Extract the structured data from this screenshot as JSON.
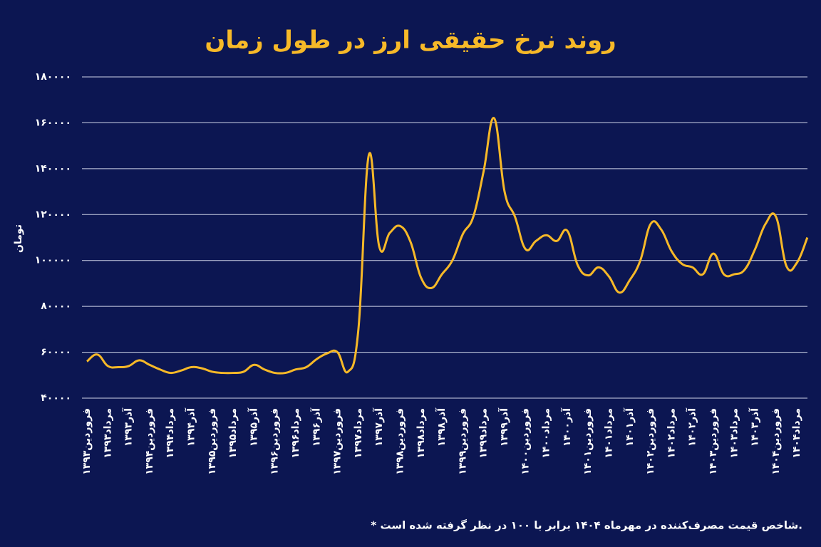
{
  "chart_data": {
    "type": "line",
    "title": "روند نرخ حقیقی ارز در طول زمان",
    "y_label": "تومان",
    "footnote": "* شاخص قیمت مصرف‌کننده در مهرماه ۱۴۰۴ برابر با ۱۰۰ در نظر گرفته شده است.",
    "categories": [
      "فروردین۱۳۹۳",
      null,
      "مرداد۱۳۹۳",
      null,
      "آذر۱۳۹۳",
      null,
      "فروردین۱۳۹۴",
      null,
      "مرداد۱۳۹۴",
      null,
      "آذر۱۳۹۴",
      null,
      "فروردین۱۳۹۵",
      null,
      "مرداد۱۳۹۵",
      null,
      "آذر۱۳۹۵",
      null,
      "فروردین۱۳۹۶",
      null,
      "مرداد۱۳۹۶",
      null,
      "آذر۱۳۹۶",
      null,
      "فروردین۱۳۹۷",
      null,
      "مرداد۱۳۹۷",
      null,
      "آذر۱۳۹۷",
      null,
      "فروردین۱۳۹۸",
      null,
      "مرداد۱۳۹۸",
      null,
      "آذر۱۳۹۸",
      null,
      "فروردین۱۳۹۹",
      null,
      "مرداد۱۳۹۹",
      null,
      "آذر۱۳۹۹",
      null,
      "فروردین۱۴۰۰",
      null,
      "مرداد۱۴۰۰",
      null,
      "آذر۱۴۰۰",
      null,
      "فروردین۱۴۰۱",
      null,
      "مرداد۱۴۰۱",
      null,
      "آذر۱۴۰۱",
      null,
      "فروردین۱۴۰۲",
      null,
      "مرداد۱۴۰۲",
      null,
      "آذر۱۴۰۲",
      null,
      "فروردین۱۴۰۳",
      null,
      "مرداد۱۴۰۳",
      null,
      "آذر۱۴۰۳",
      null,
      "فروردین۱۴۰۴",
      null,
      "مرداد۱۴۰۴",
      null
    ],
    "values": [
      56000,
      59000,
      54000,
      53500,
      54000,
      56500,
      54500,
      52500,
      51000,
      52000,
      53500,
      53000,
      51500,
      51000,
      51000,
      51500,
      54500,
      52500,
      51000,
      51000,
      52500,
      53500,
      57000,
      59500,
      60000,
      51500,
      70000,
      146000,
      106000,
      112000,
      115000,
      108000,
      92500,
      88000,
      94000,
      100000,
      111500,
      119000,
      139000,
      162000,
      130000,
      119000,
      105000,
      108500,
      111000,
      108500,
      113000,
      98000,
      93500,
      97000,
      93000,
      86000,
      91500,
      100000,
      116000,
      113500,
      104000,
      98500,
      97000,
      94000,
      103000,
      94000,
      94000,
      96000,
      105000,
      116000,
      119000,
      97500,
      99000,
      110000
    ],
    "color": "#f7b928",
    "ylim": [
      40000,
      180000
    ],
    "yticks": [
      {
        "value": 40000,
        "label": "۴۰۰۰۰"
      },
      {
        "value": 60000,
        "label": "۶۰۰۰۰"
      },
      {
        "value": 80000,
        "label": "۸۰۰۰۰"
      },
      {
        "value": 100000,
        "label": "۱۰۰۰۰۰"
      },
      {
        "value": 120000,
        "label": "۱۲۰۰۰۰"
      },
      {
        "value": 140000,
        "label": "۱۴۰۰۰۰"
      },
      {
        "value": 160000,
        "label": "۱۶۰۰۰۰"
      },
      {
        "value": 180000,
        "label": "۱۸۰۰۰۰"
      }
    ],
    "grid": true
  }
}
